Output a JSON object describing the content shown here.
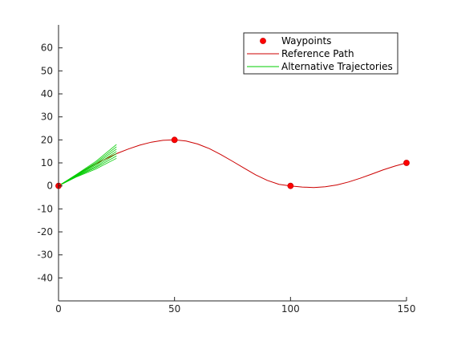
{
  "chart_data": {
    "type": "line",
    "title": "",
    "xlabel": "",
    "ylabel": "",
    "xlim": [
      0,
      150
    ],
    "ylim": [
      -50,
      70
    ],
    "xticks": [
      0,
      50,
      100,
      150
    ],
    "yticks": [
      -40,
      -30,
      -20,
      -10,
      0,
      10,
      20,
      30,
      40,
      50,
      60
    ],
    "grid": false,
    "legend_position": "top-right",
    "series": [
      {
        "name": "Waypoints",
        "kind": "markers",
        "color": "#ff0000",
        "points": [
          [
            0,
            0
          ],
          [
            50,
            20
          ],
          [
            100,
            0
          ],
          [
            150,
            10
          ]
        ]
      },
      {
        "name": "Reference Path",
        "kind": "line",
        "color": "#cc0000",
        "points": [
          [
            0,
            0
          ],
          [
            5,
            3.1
          ],
          [
            10,
            6.2
          ],
          [
            15,
            9.0
          ],
          [
            20,
            11.6
          ],
          [
            25,
            14.0
          ],
          [
            30,
            16.0
          ],
          [
            35,
            17.7
          ],
          [
            40,
            19.0
          ],
          [
            45,
            19.8
          ],
          [
            50,
            20.0
          ],
          [
            55,
            19.5
          ],
          [
            60,
            18.2
          ],
          [
            65,
            16.2
          ],
          [
            70,
            13.6
          ],
          [
            75,
            10.7
          ],
          [
            80,
            7.7
          ],
          [
            85,
            4.8
          ],
          [
            90,
            2.4
          ],
          [
            95,
            0.7
          ],
          [
            100,
            0.0
          ],
          [
            105,
            -0.5
          ],
          [
            110,
            -0.7
          ],
          [
            115,
            -0.4
          ],
          [
            120,
            0.4
          ],
          [
            125,
            1.7
          ],
          [
            130,
            3.3
          ],
          [
            135,
            5.1
          ],
          [
            140,
            7.0
          ],
          [
            145,
            8.6
          ],
          [
            150,
            10.0
          ]
        ]
      },
      {
        "name": "Alternative Trajectories",
        "kind": "lines",
        "color": "#00cc00",
        "lines": [
          [
            [
              0,
              0
            ],
            [
              8,
              5.2
            ],
            [
              16,
              10.6
            ],
            [
              25,
              18.0
            ]
          ],
          [
            [
              0,
              0
            ],
            [
              8,
              5.0
            ],
            [
              16,
              10.0
            ],
            [
              25,
              17.0
            ]
          ],
          [
            [
              0,
              0
            ],
            [
              8,
              4.8
            ],
            [
              16,
              9.5
            ],
            [
              25,
              16.0
            ]
          ],
          [
            [
              0,
              0
            ],
            [
              8,
              4.6
            ],
            [
              16,
              9.0
            ],
            [
              25,
              15.0
            ]
          ],
          [
            [
              0,
              0
            ],
            [
              8,
              4.4
            ],
            [
              16,
              8.4
            ],
            [
              25,
              14.0
            ]
          ],
          [
            [
              0,
              0
            ],
            [
              8,
              4.2
            ],
            [
              16,
              7.9
            ],
            [
              25,
              13.0
            ]
          ],
          [
            [
              0,
              0
            ],
            [
              8,
              4.0
            ],
            [
              16,
              7.3
            ],
            [
              25,
              12.0
            ]
          ]
        ]
      }
    ]
  }
}
